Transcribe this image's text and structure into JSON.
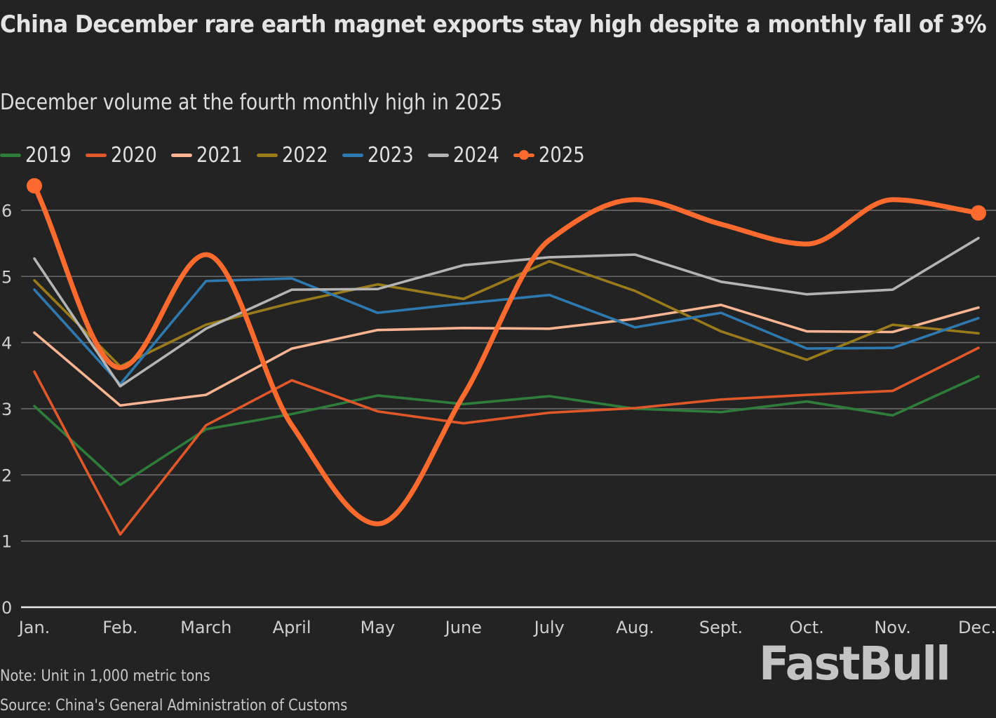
{
  "header": {
    "title": "China December rare earth magnet exports stay high despite a monthly fall of 3%",
    "subtitle": "December volume at the fourth monthly high in 2025"
  },
  "footer": {
    "note": "Note: Unit in 1,000 metric tons",
    "source": "Source: China's General Administration of Customs",
    "logo": "FastBull"
  },
  "chart_data": {
    "type": "line",
    "title": "China December rare earth magnet exports stay high despite a monthly fall of 3%",
    "subtitle": "December volume at the fourth monthly high in 2025",
    "xlabel": "",
    "ylabel": "",
    "unit": "1,000 metric tons",
    "categories": [
      "Jan.",
      "Feb.",
      "March",
      "April",
      "May",
      "June",
      "July",
      "Aug.",
      "Sept.",
      "Oct.",
      "Nov.",
      "Dec."
    ],
    "ylim": [
      0,
      6.5
    ],
    "yticks": [
      0,
      1,
      2,
      3,
      4,
      5,
      6
    ],
    "grid": true,
    "legend_position": "top-left",
    "series": [
      {
        "name": "2019",
        "color": "#2e7d3a",
        "smooth": false,
        "values": [
          3.04,
          1.85,
          2.69,
          2.92,
          3.2,
          3.07,
          3.19,
          3.0,
          2.95,
          3.11,
          2.9,
          3.49
        ]
      },
      {
        "name": "2020",
        "color": "#e0582a",
        "smooth": false,
        "values": [
          3.56,
          1.1,
          2.75,
          3.43,
          2.96,
          2.78,
          2.94,
          3.01,
          3.14,
          3.21,
          3.27,
          3.92
        ]
      },
      {
        "name": "2021",
        "color": "#f9b492",
        "smooth": false,
        "values": [
          4.15,
          3.05,
          3.21,
          3.91,
          4.19,
          4.22,
          4.21,
          4.36,
          4.57,
          4.17,
          4.16,
          4.53
        ]
      },
      {
        "name": "2022",
        "color": "#9a7b1c",
        "smooth": false,
        "values": [
          4.94,
          3.64,
          4.27,
          4.6,
          4.88,
          4.66,
          5.23,
          4.78,
          4.17,
          3.74,
          4.27,
          4.14
        ]
      },
      {
        "name": "2023",
        "color": "#2f79b1",
        "smooth": false,
        "values": [
          4.8,
          3.37,
          4.93,
          4.97,
          4.45,
          4.59,
          4.72,
          4.23,
          4.45,
          3.91,
          3.92,
          4.37
        ]
      },
      {
        "name": "2024",
        "color": "#b4b4b4",
        "smooth": false,
        "values": [
          5.27,
          3.34,
          4.21,
          4.8,
          4.81,
          5.17,
          5.29,
          5.33,
          4.92,
          4.73,
          4.8,
          5.58
        ]
      },
      {
        "name": "2025",
        "color": "#ff6b2e",
        "smooth": true,
        "highlight": true,
        "values": [
          6.37,
          3.62,
          5.33,
          2.75,
          1.26,
          3.2,
          5.55,
          6.16,
          5.79,
          5.49,
          6.16,
          5.96
        ]
      }
    ]
  }
}
